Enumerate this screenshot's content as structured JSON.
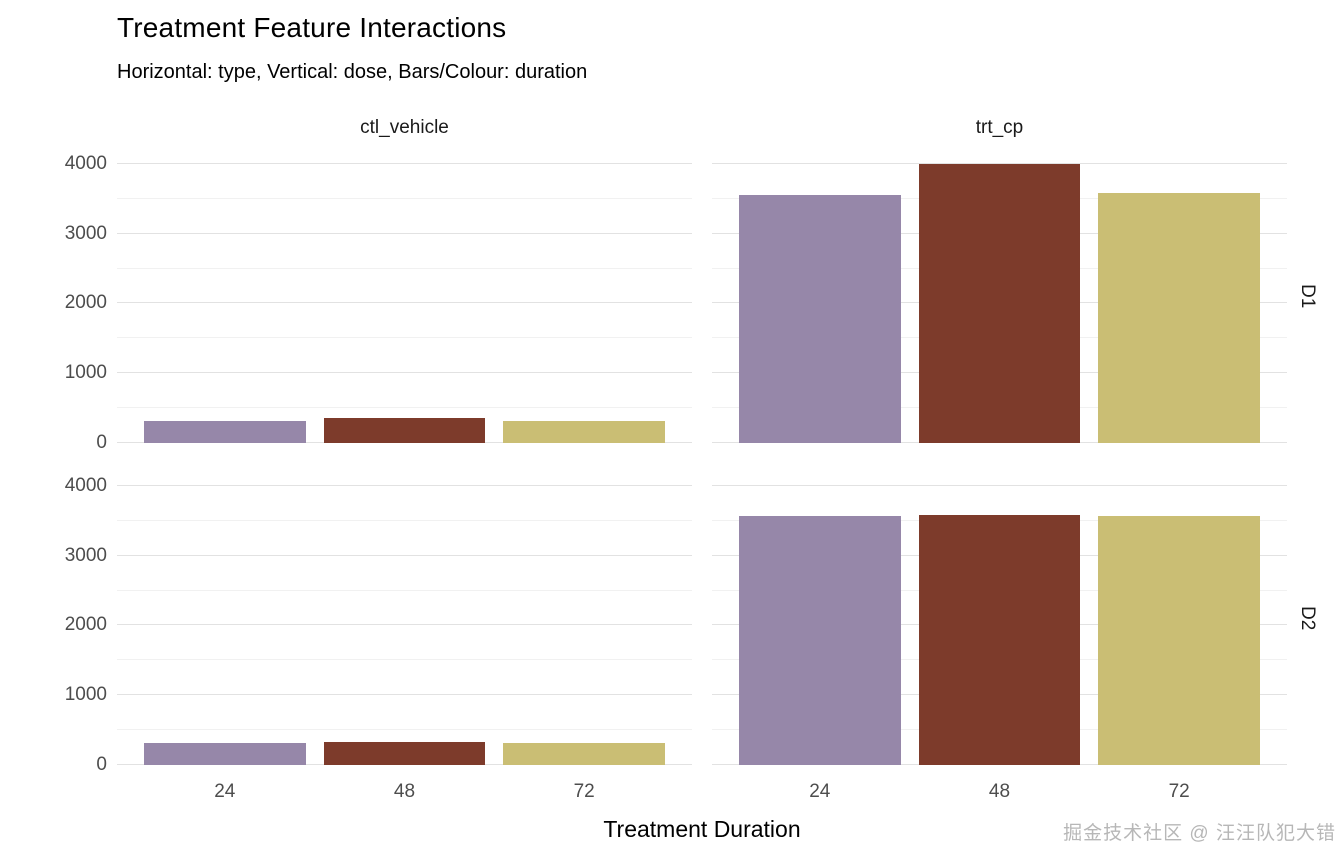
{
  "title": "Treatment Feature Interactions",
  "subtitle": "Horizontal: type, Vertical: dose, Bars/Colour: duration",
  "watermark": "掘金技术社区 @ 汪汪队犯大错",
  "chart_data": {
    "type": "bar",
    "title": "Treatment Feature Interactions",
    "subtitle": "Horizontal: type, Vertical: dose, Bars/Colour: duration",
    "xlabel": "Treatment Duration",
    "ylabel": "",
    "facet_cols": [
      "ctl_vehicle",
      "trt_cp"
    ],
    "facet_rows": [
      "D1",
      "D2"
    ],
    "categories": [
      "24",
      "48",
      "72"
    ],
    "legend": "duration",
    "bar_colors": [
      "#9687a9",
      "#7d3b2b",
      "#cabe74"
    ],
    "ylim": [
      0,
      4200
    ],
    "yticks": [
      0,
      1000,
      2000,
      3000,
      4000
    ],
    "grid": true,
    "panels": [
      {
        "row": "D1",
        "col": "ctl_vehicle",
        "values": [
          320,
          365,
          320
        ]
      },
      {
        "row": "D1",
        "col": "trt_cp",
        "values": [
          3560,
          4000,
          3580
        ]
      },
      {
        "row": "D2",
        "col": "ctl_vehicle",
        "values": [
          320,
          325,
          320
        ]
      },
      {
        "row": "D2",
        "col": "trt_cp",
        "values": [
          3570,
          3580,
          3570
        ]
      }
    ]
  }
}
